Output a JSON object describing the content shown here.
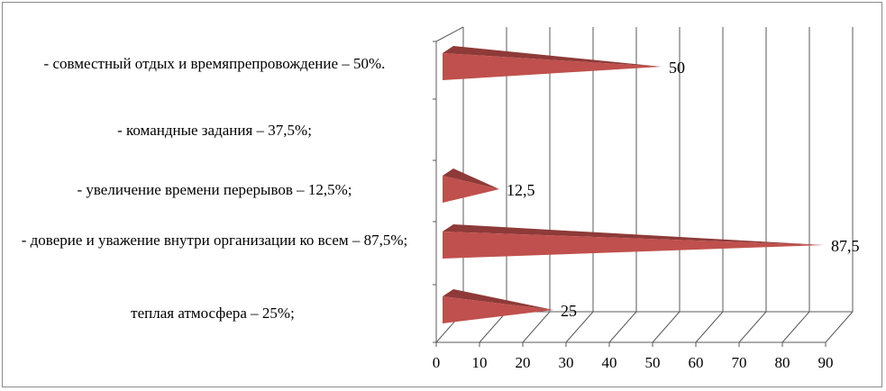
{
  "chart_data": {
    "type": "bar",
    "orientation": "horizontal",
    "style": "3d-cone",
    "categories": [
      "теплая атмосфера – 25%;",
      "- доверие и уважение внутри организации ко всем – 87,5%;",
      "- увеличение времени перерывов – 12,5%;",
      "- командные задания – 37,5%;",
      "- совместный отдых и времяпрепровождение – 50%."
    ],
    "values": [
      25,
      87.5,
      12.5,
      null,
      50
    ],
    "data_labels": [
      "25",
      "87,5",
      "12,5",
      "",
      "50"
    ],
    "xlim": [
      0,
      90
    ],
    "xticks": [
      "0",
      "10",
      "20",
      "30",
      "40",
      "50",
      "60",
      "70",
      "80",
      "90"
    ],
    "grid": "vertical",
    "colors": {
      "cone_front": "#C0504D",
      "cone_top": "#8E3A38",
      "grid": "#595959"
    }
  }
}
